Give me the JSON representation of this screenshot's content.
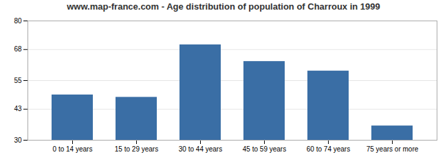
{
  "chart_data": {
    "type": "bar",
    "title": "www.map-france.com - Age distribution of population of Charroux in 1999",
    "categories": [
      "0 to 14 years",
      "15 to 29 years",
      "30 to 44 years",
      "45 to 59 years",
      "60 to 74 years",
      "75 years or more"
    ],
    "values": [
      49,
      48,
      70,
      63,
      59,
      36
    ],
    "color": "#3a6ea5",
    "ylim": [
      30,
      80
    ],
    "yticks": [
      30,
      43,
      55,
      68,
      80
    ],
    "grid": true
  }
}
